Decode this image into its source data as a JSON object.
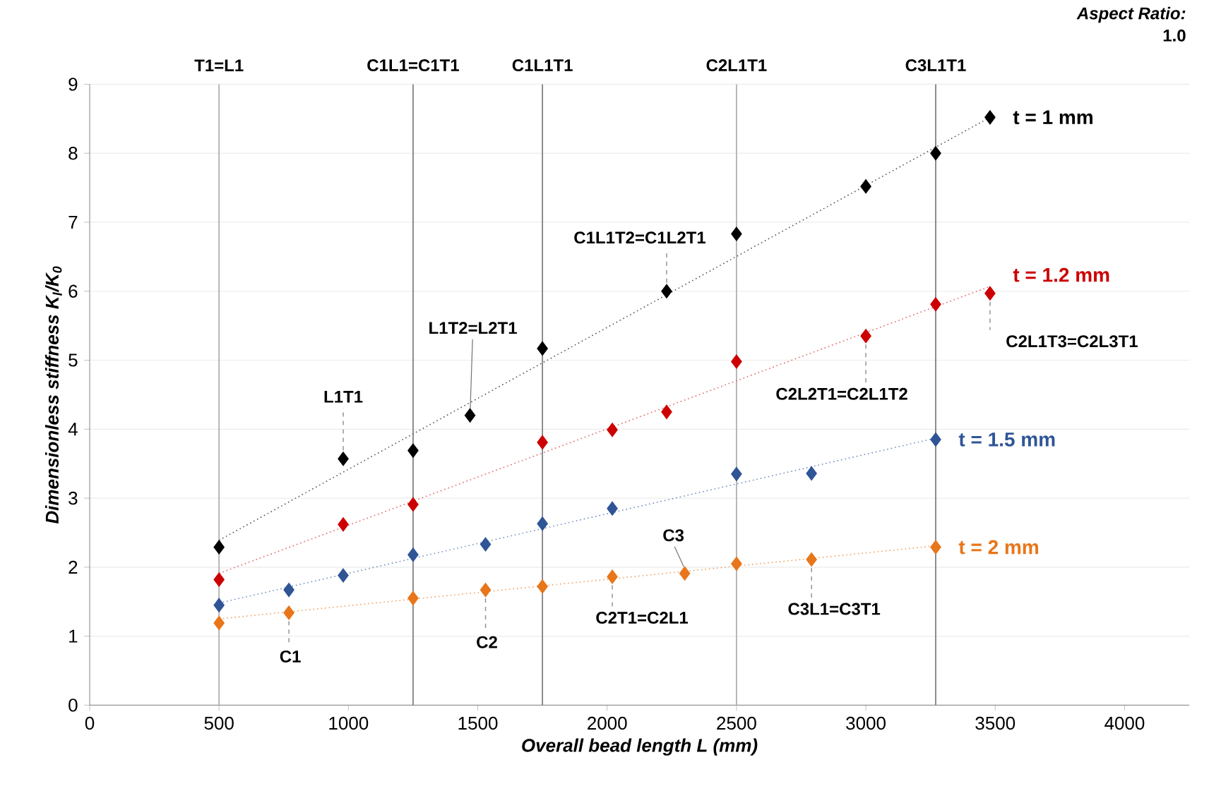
{
  "chart_data": {
    "type": "scatter",
    "xlabel": "Overall bead length  L (mm)",
    "ylabel": "Dimensionless stiffness K$_{l}$/K$_{0}$",
    "xlim": [
      0,
      4250
    ],
    "ylim": [
      0,
      9
    ],
    "xticks": [
      0,
      500,
      1000,
      1500,
      2000,
      2500,
      3000,
      3500,
      4000
    ],
    "yticks": [
      0,
      1,
      2,
      3,
      4,
      5,
      6,
      7,
      8,
      9
    ],
    "grid": "y",
    "marker": "diamond",
    "series": [
      {
        "name": "t = 1 mm",
        "color": "#000000",
        "x": [
          500,
          980,
          1250,
          1470,
          1750,
          2230,
          2500,
          3000,
          3270,
          3480
        ],
        "values": [
          2.29,
          3.57,
          3.69,
          4.2,
          5.17,
          6.0,
          6.83,
          7.52,
          8.0,
          8.52
        ]
      },
      {
        "name": "t = 1.2 mm",
        "color": "#cc0000",
        "x": [
          500,
          980,
          1250,
          1750,
          2020,
          2230,
          2500,
          3000,
          3270,
          3480
        ],
        "values": [
          1.82,
          2.62,
          2.91,
          3.81,
          3.99,
          4.25,
          4.98,
          5.35,
          5.81,
          5.97
        ]
      },
      {
        "name": "t = 1.5 mm",
        "color": "#2f5597",
        "x": [
          500,
          770,
          980,
          1250,
          1530,
          1750,
          2020,
          2500,
          2790,
          3270
        ],
        "values": [
          1.45,
          1.67,
          1.88,
          2.18,
          2.33,
          2.63,
          2.85,
          3.35,
          3.36,
          3.85
        ]
      },
      {
        "name": "t = 2 mm",
        "color": "#e8761a",
        "x": [
          500,
          770,
          1250,
          1530,
          1750,
          2020,
          2300,
          2500,
          2790,
          3270
        ],
        "values": [
          1.19,
          1.34,
          1.55,
          1.67,
          1.72,
          1.86,
          1.91,
          2.05,
          2.11,
          2.29
        ]
      },
      {
        "type": "line",
        "marker": "none",
        "line_style": "dotted",
        "color": "#555555",
        "x": [
          500,
          3480
        ],
        "values": [
          2.39,
          8.52
        ]
      },
      {
        "type": "line",
        "marker": "none",
        "line_style": "dotted",
        "color": "#e06666",
        "x": [
          500,
          3480
        ],
        "values": [
          1.91,
          6.07
        ]
      },
      {
        "type": "line",
        "marker": "none",
        "line_style": "dotted",
        "color": "#6f8fc0",
        "x": [
          500,
          3270
        ],
        "values": [
          1.48,
          3.87
        ]
      },
      {
        "type": "line",
        "marker": "none",
        "line_style": "dotted",
        "color": "#f0a060",
        "x": [
          500,
          3270
        ],
        "values": [
          1.25,
          2.31
        ]
      }
    ],
    "ref_lines": [
      {
        "axis": "x",
        "value": 500,
        "label": "T1=L1",
        "color": "#b0b0b0"
      },
      {
        "axis": "x",
        "value": 1250,
        "label": "C1L1=C1T1",
        "color": "#808080"
      },
      {
        "axis": "x",
        "value": 1750,
        "label": "C1L1T1",
        "color": "#808080"
      },
      {
        "axis": "x",
        "value": 2500,
        "label": "C2L1T1",
        "color": "#b0b0b0"
      },
      {
        "axis": "x",
        "value": 3270,
        "label": "C3L1T1",
        "color": "#808080"
      }
    ],
    "annotations": [
      {
        "text": "L1T1",
        "x": 980,
        "y": 3.57
      },
      {
        "text": "L1T2=L2T1",
        "x": 1470,
        "y": 4.2
      },
      {
        "text": "C1L1T2=C1L2T1",
        "x": 2230,
        "y": 6.0
      },
      {
        "text": "C2L2T1=C2L1T2",
        "x": 3000,
        "y": 5.35
      },
      {
        "text": "C2L1T3=C2L3T1",
        "x": 3480,
        "y": 5.97
      },
      {
        "text": "C1",
        "x": 770,
        "y": 1.34
      },
      {
        "text": "C2",
        "x": 1530,
        "y": 1.67
      },
      {
        "text": "C2T1=C2L1",
        "x": 2020,
        "y": 1.86
      },
      {
        "text": "C3",
        "x": 2300,
        "y": 1.91
      },
      {
        "text": "C3L1=C3T1",
        "x": 2790,
        "y": 2.11
      },
      "*Aspect Ratio:*",
      "1.0"
    ]
  }
}
